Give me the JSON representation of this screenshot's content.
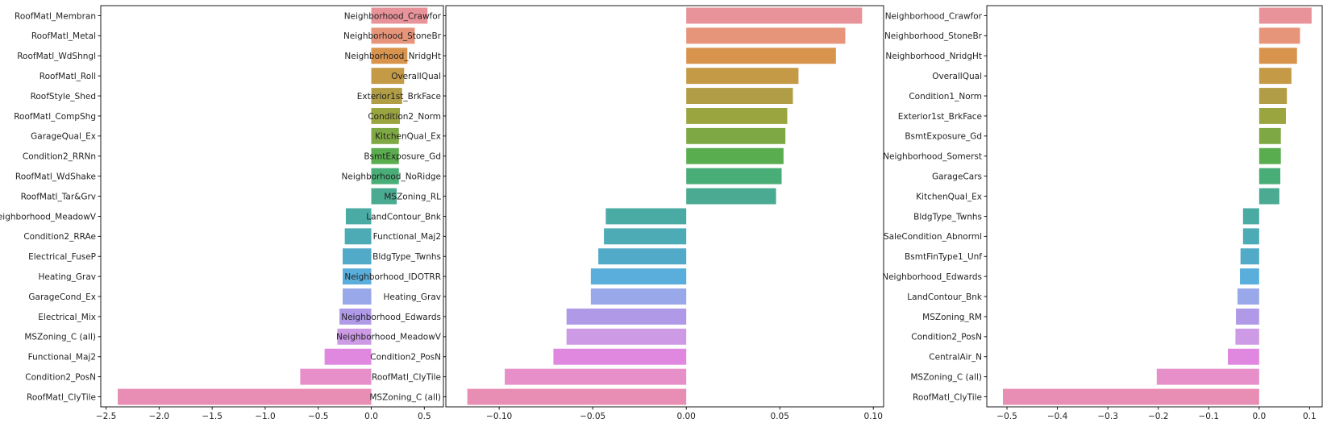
{
  "chart_data": [
    {
      "type": "bar",
      "orientation": "horizontal",
      "grid": false,
      "xlim": [
        -2.55,
        0.68
      ],
      "xticks": [
        -2.5,
        -2.0,
        -1.5,
        -1.0,
        -0.5,
        0.0,
        0.5
      ],
      "xtick_labels": [
        "−2.5",
        "−2.0",
        "−1.5",
        "−1.0",
        "−0.5",
        "0.0",
        "0.5"
      ],
      "categories": [
        "RoofMatl_Membran",
        "RoofMatl_Metal",
        "RoofMatl_WdShngl",
        "RoofMatl_Roll",
        "RoofStyle_Shed",
        "RoofMatl_CompShg",
        "GarageQual_Ex",
        "Condition2_RRNn",
        "RoofMatl_WdShake",
        "RoofMatl_Tar&Grv",
        "Neighborhood_MeadowV",
        "Condition2_RRAe",
        "Electrical_FuseP",
        "Heating_Grav",
        "GarageCond_Ex",
        "Electrical_Mix",
        "MSZoning_C (all)",
        "Functional_Maj2",
        "Condition2_PosN",
        "RoofMatl_ClyTile"
      ],
      "values": [
        0.53,
        0.41,
        0.34,
        0.31,
        0.29,
        0.27,
        0.26,
        0.26,
        0.26,
        0.24,
        -0.24,
        -0.25,
        -0.27,
        -0.27,
        -0.27,
        -0.3,
        -0.32,
        -0.44,
        -0.67,
        -2.39
      ]
    },
    {
      "type": "bar",
      "orientation": "horizontal",
      "grid": false,
      "xlim": [
        -0.1285,
        0.1055
      ],
      "xticks": [
        -0.1,
        -0.05,
        0.0,
        0.05,
        0.1
      ],
      "xtick_labels": [
        "−0.10",
        "−0.05",
        "0.00",
        "0.05",
        "0.10"
      ],
      "categories": [
        "Neighborhood_Crawfor",
        "Neighborhood_StoneBr",
        "Neighborhood_NridgHt",
        "OverallQual",
        "Exterior1st_BrkFace",
        "Condition2_Norm",
        "KitchenQual_Ex",
        "BsmtExposure_Gd",
        "Neighborhood_NoRidge",
        "MSZoning_RL",
        "LandContour_Bnk",
        "Functional_Maj2",
        "BldgType_Twnhs",
        "Neighborhood_IDOTRR",
        "Heating_Grav",
        "Neighborhood_Edwards",
        "Neighborhood_MeadowV",
        "Condition2_PosN",
        "RoofMatl_ClyTile",
        "MSZoning_C (all)"
      ],
      "values": [
        0.094,
        0.085,
        0.08,
        0.06,
        0.057,
        0.054,
        0.053,
        0.052,
        0.051,
        0.048,
        -0.043,
        -0.044,
        -0.047,
        -0.051,
        -0.051,
        -0.064,
        -0.064,
        -0.071,
        -0.097,
        -0.117
      ]
    },
    {
      "type": "bar",
      "orientation": "horizontal",
      "grid": false,
      "xlim": [
        -0.54,
        0.125
      ],
      "xticks": [
        -0.5,
        -0.4,
        -0.3,
        -0.2,
        -0.1,
        0.0,
        0.1
      ],
      "xtick_labels": [
        "−0.5",
        "−0.4",
        "−0.3",
        "−0.2",
        "−0.1",
        "0.0",
        "0.1"
      ],
      "categories": [
        "Neighborhood_Crawfor",
        "Neighborhood_StoneBr",
        "Neighborhood_NridgHt",
        "OverallQual",
        "Condition1_Norm",
        "Exterior1st_BrkFace",
        "BsmtExposure_Gd",
        "Neighborhood_Somerst",
        "GarageCars",
        "KitchenQual_Ex",
        "BldgType_Twnhs",
        "SaleCondition_Abnorml",
        "BsmtFinType1_Unf",
        "Neighborhood_Edwards",
        "LandContour_Bnk",
        "MSZoning_RM",
        "Condition2_PosN",
        "CentralAir_N",
        "MSZoning_C (all)",
        "RoofMatl_ClyTile"
      ],
      "values": [
        0.104,
        0.081,
        0.075,
        0.064,
        0.055,
        0.053,
        0.043,
        0.043,
        0.042,
        0.04,
        -0.032,
        -0.032,
        -0.037,
        -0.038,
        -0.043,
        -0.046,
        -0.047,
        -0.062,
        -0.203,
        -0.508
      ]
    }
  ],
  "colors": [
    "#e8939a",
    "#e7957a",
    "#d8934d",
    "#c49a47",
    "#b09d45",
    "#9ba540",
    "#7ea843",
    "#5aad4f",
    "#49ad78",
    "#4aaa92",
    "#4aaaa4",
    "#4cabb5",
    "#51aac8",
    "#5aaedc",
    "#98a8e8",
    "#b09ae8",
    "#cd9ae6",
    "#e087e0",
    "#e68fc9",
    "#e88db3"
  ]
}
